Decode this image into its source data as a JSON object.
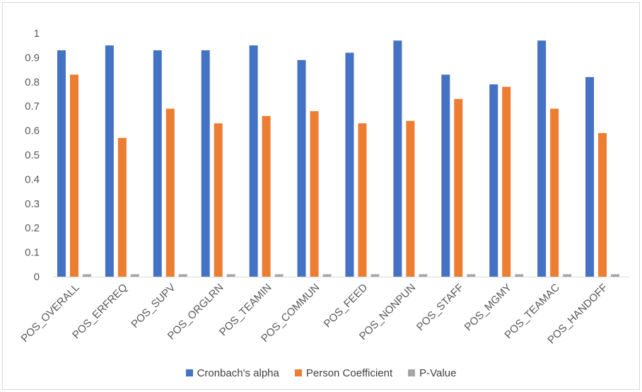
{
  "chart_data": {
    "type": "bar",
    "title": "",
    "xlabel": "",
    "ylabel": "",
    "ylim": [
      0,
      1
    ],
    "yticks": [
      "0",
      "0.1",
      "0.2",
      "0.3",
      "0.4",
      "0.5",
      "0.6",
      "0.7",
      "0.8",
      "0.9",
      "1"
    ],
    "grid": false,
    "legend_position": "bottom",
    "categories": [
      "POS_OVERALL",
      "POS_ERFREQ",
      "POS_SUPV",
      "POS_ORGLRN",
      "POS_TEAMIN",
      "POS_COMMUN",
      "POS_FEED",
      "POS_NONPUN",
      "POS_STAFF",
      "POS_MGMY",
      "POS_TEAMAC",
      "POS_HANDOFF"
    ],
    "series": [
      {
        "name": "Cronbach's alpha",
        "color": "#4472C4",
        "values": [
          0.93,
          0.95,
          0.93,
          0.93,
          0.95,
          0.89,
          0.92,
          0.97,
          0.83,
          0.79,
          0.97,
          0.82
        ]
      },
      {
        "name": "Person Coefficient",
        "color": "#ED7D31",
        "values": [
          0.83,
          0.57,
          0.69,
          0.63,
          0.66,
          0.68,
          0.63,
          0.64,
          0.73,
          0.78,
          0.69,
          0.59
        ]
      },
      {
        "name": "P-Value",
        "color": "#A5A5A5",
        "values": [
          0.01,
          0.01,
          0.01,
          0.01,
          0.01,
          0.01,
          0.01,
          0.01,
          0.01,
          0.01,
          0.01,
          0.01
        ]
      }
    ]
  }
}
